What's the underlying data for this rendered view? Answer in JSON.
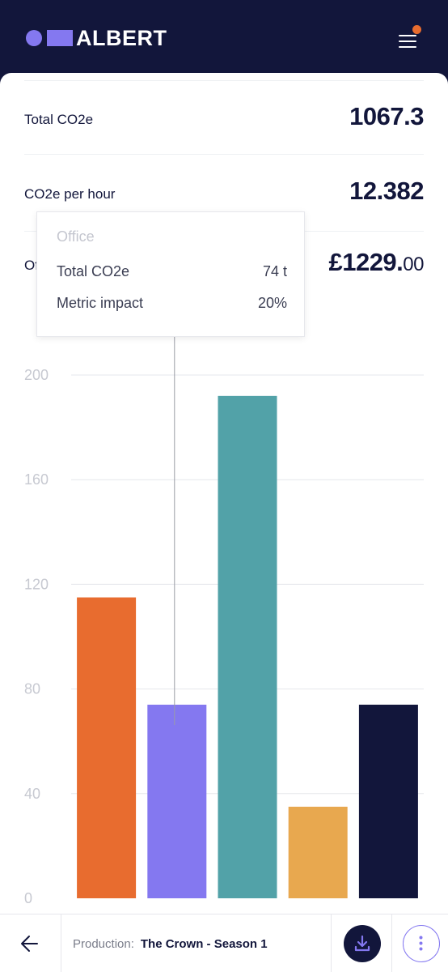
{
  "header": {
    "brand": "ALBERT",
    "brand_color": "#8478f0",
    "notification_color": "#e86c2f"
  },
  "stats": [
    {
      "label": "Total CO2e",
      "value": "1067.3",
      "value_small": ""
    },
    {
      "label": "CO2e per hour",
      "value": "12.382",
      "value_small": ""
    },
    {
      "label": "Of",
      "value": "£1229.",
      "value_small": "00"
    }
  ],
  "tooltip": {
    "title": "Office",
    "rows": [
      {
        "label": "Total CO2e",
        "value": "74 t"
      },
      {
        "label": "Metric impact",
        "value": "20%"
      }
    ]
  },
  "chart_data": {
    "type": "bar",
    "categories": [
      "",
      "Office",
      "",
      "",
      ""
    ],
    "values": [
      115,
      74,
      192,
      35,
      74
    ],
    "colors": [
      "#e86c2f",
      "#8478f0",
      "#52a2a8",
      "#e8a84f",
      "#12163b"
    ],
    "ylim": [
      0,
      200
    ],
    "yticks": [
      "0",
      "40",
      "80",
      "120",
      "160",
      "200"
    ],
    "grid": true,
    "title": "",
    "xlabel": "",
    "ylabel": ""
  },
  "footer": {
    "production_label": "Production:",
    "production_name": "The Crown - Season 1",
    "icons": [
      "arrow-left-icon",
      "download-icon",
      "more-vertical-icon"
    ]
  }
}
